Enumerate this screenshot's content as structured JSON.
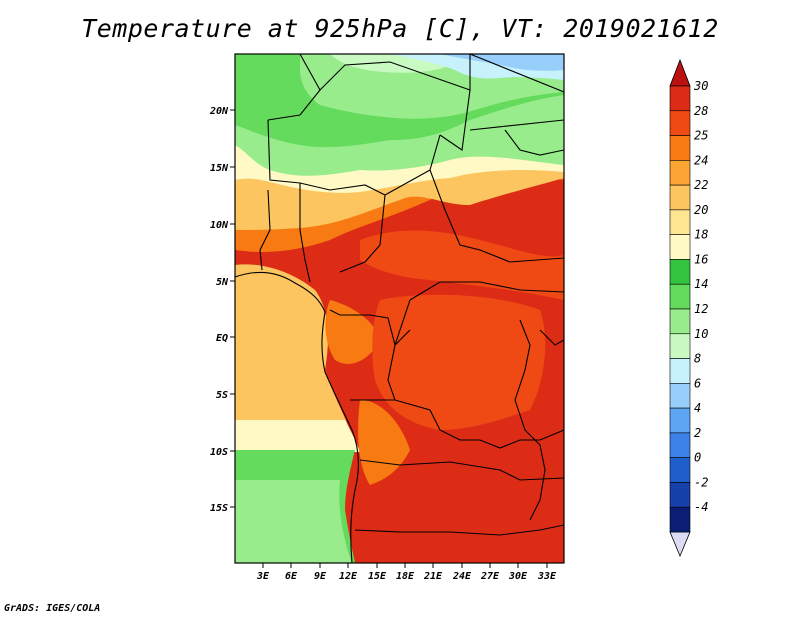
{
  "title": "Temperature at 925hPa [C], VT: 2019021612",
  "credit": "GrADS: IGES/COLA",
  "map": {
    "lat_ticks": [
      "20N",
      "15N",
      "10N",
      "5N",
      "EQ",
      "5S",
      "10S",
      "15S"
    ],
    "lon_ticks": [
      "3E",
      "6E",
      "9E",
      "12E",
      "15E",
      "18E",
      "21E",
      "24E",
      "27E",
      "30E",
      "33E"
    ]
  },
  "colorbar": {
    "labels": [
      "30",
      "28",
      "25",
      "24",
      "22",
      "20",
      "18",
      "16",
      "14",
      "12",
      "10",
      "8",
      "6",
      "4",
      "2",
      "0",
      "-2",
      "-4"
    ],
    "colors": [
      "#dd2c16",
      "#f04a14",
      "#f77b12",
      "#fba534",
      "#fdc560",
      "#ffe690",
      "#fff9c5",
      "#33c33e",
      "#65db5d",
      "#98ec8b",
      "#c8fac2",
      "#c7f1fb",
      "#98cffa",
      "#5ea6f4",
      "#3d82e8",
      "#1f5fcc",
      "#1640aa",
      "#0a1f74"
    ],
    "top_arrow_color": "#bb1111",
    "bottom_arrow_color": "#dcdcf5"
  }
}
